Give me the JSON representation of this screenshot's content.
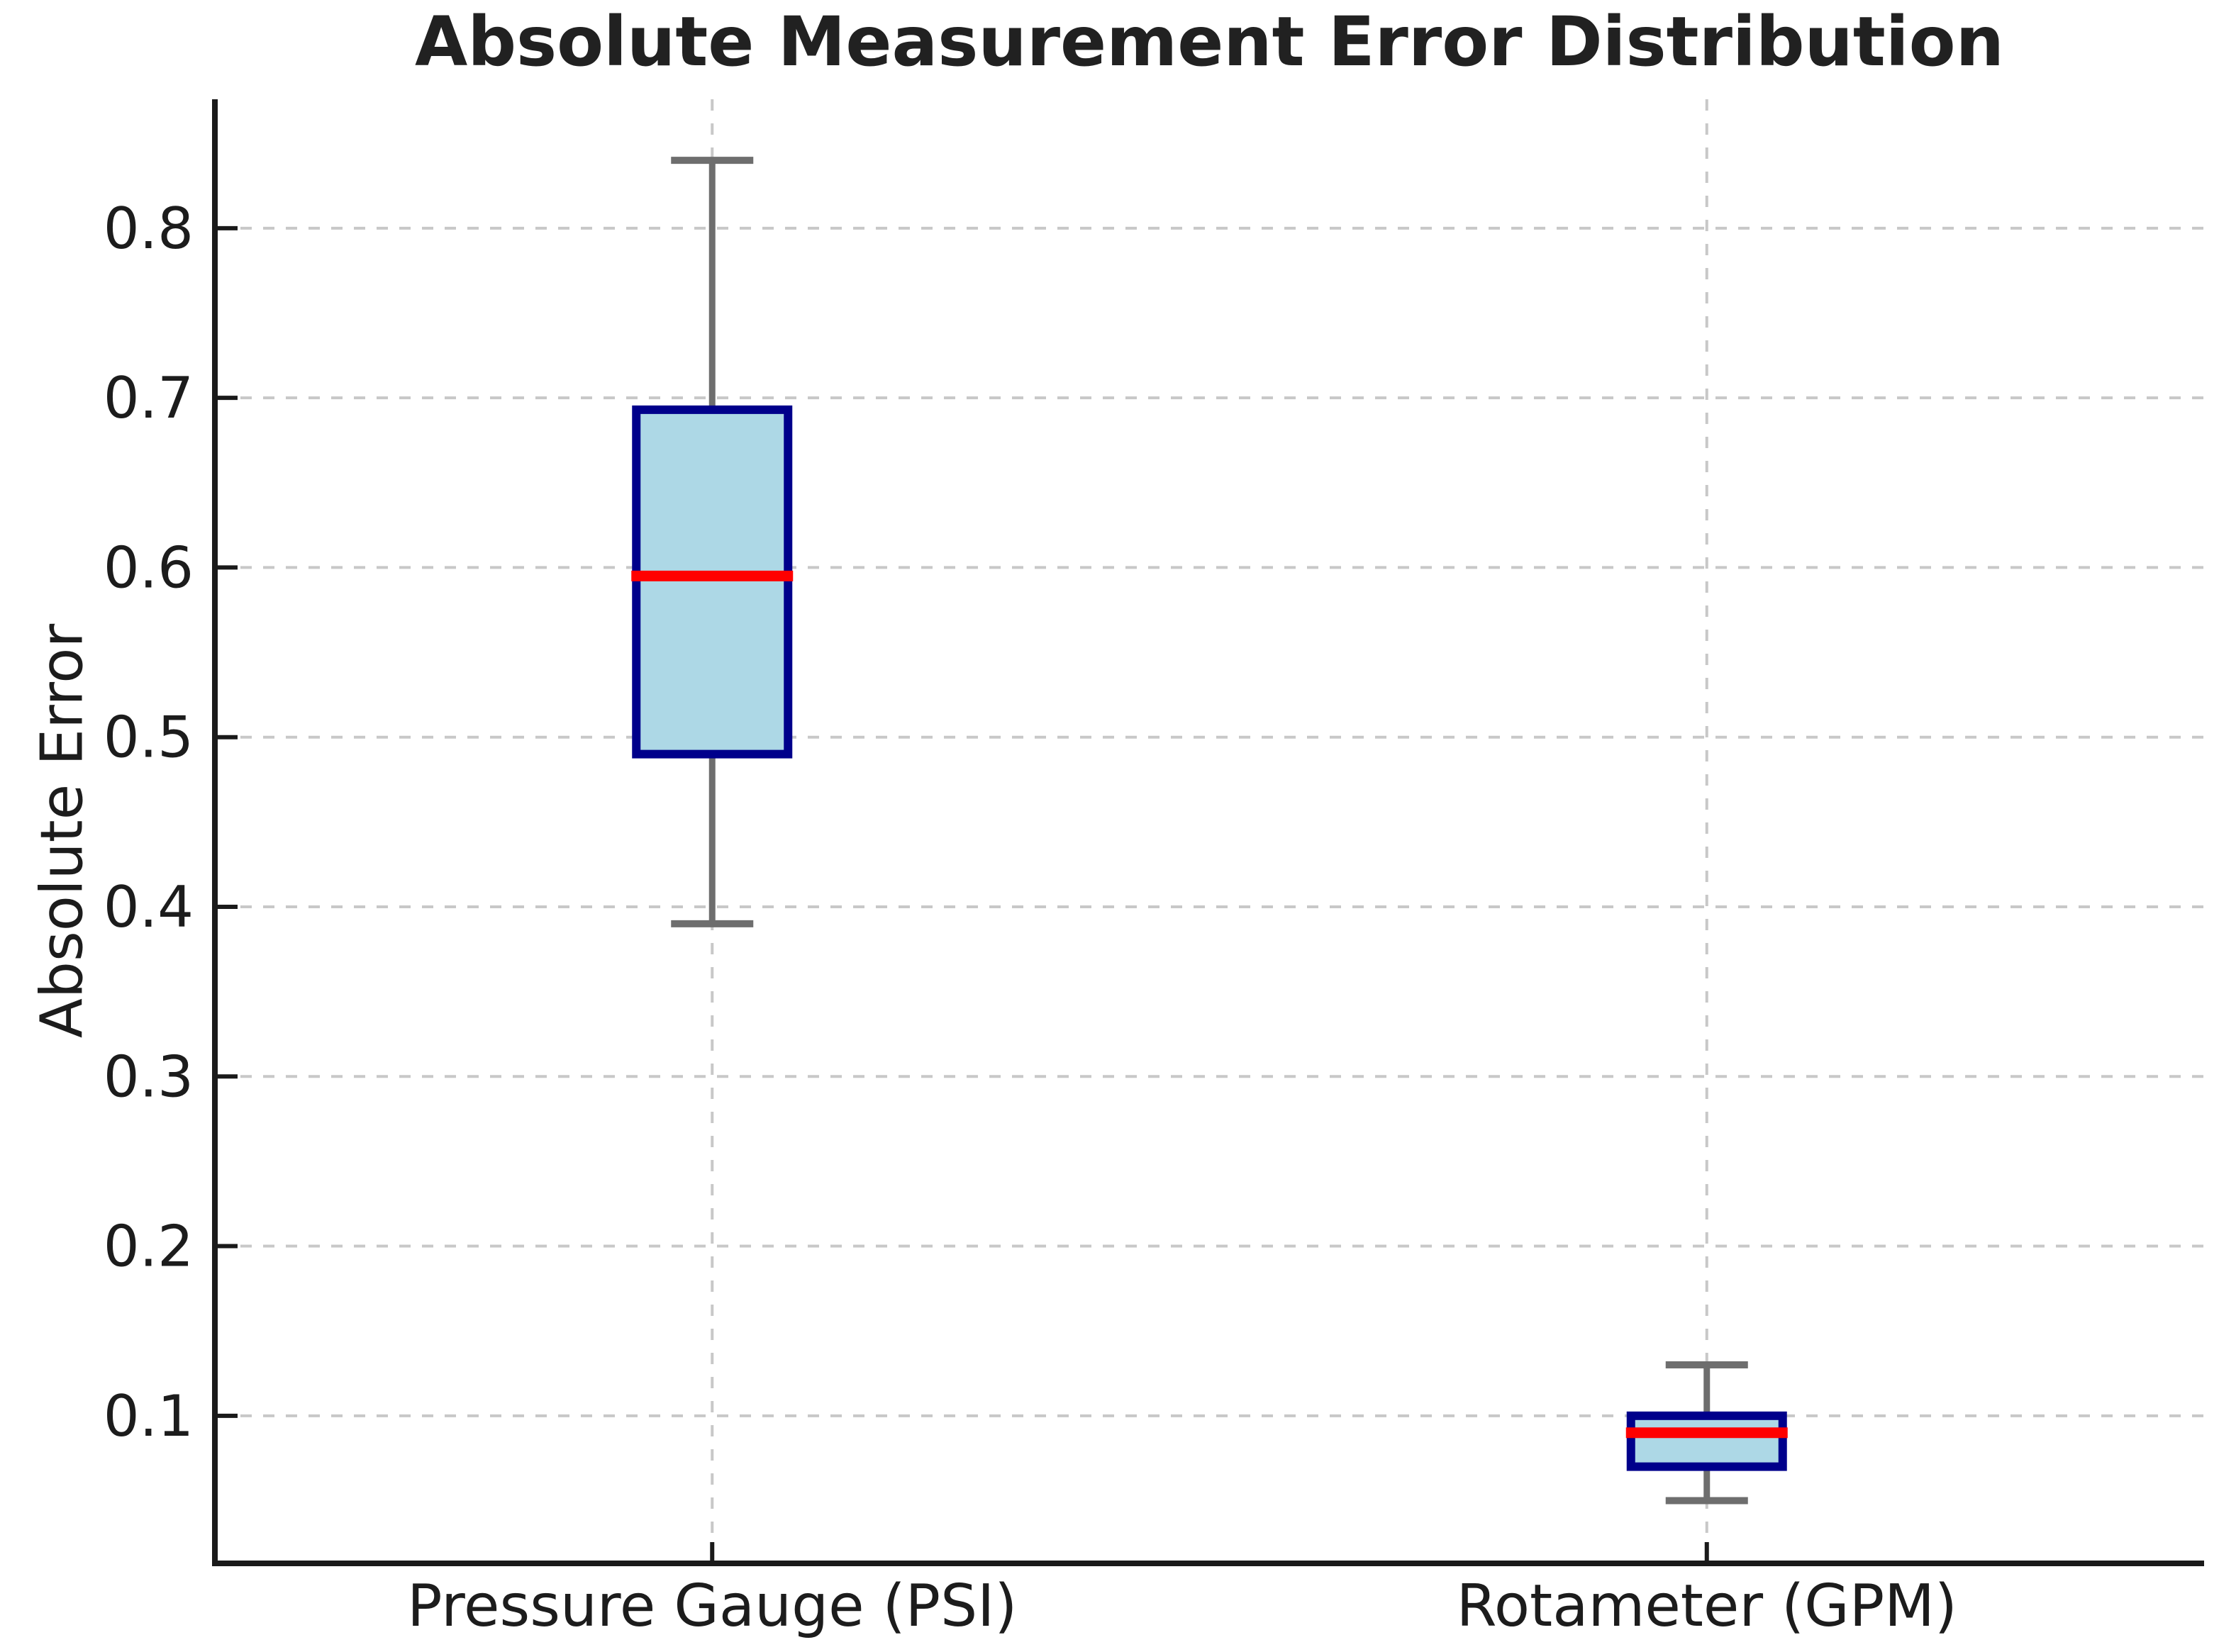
{
  "chart": {
    "title": "Absolute Measurement Error Distribution",
    "ylabel": "Absolute Error"
  },
  "chart_data": {
    "type": "box",
    "title": "Absolute Measurement Error Distribution",
    "xlabel": "",
    "ylabel": "Absolute Error",
    "categories": [
      "Pressure Gauge (PSI)",
      "Rotameter (GPM)"
    ],
    "series": [
      {
        "name": "Pressure Gauge (PSI)",
        "whisker_low": 0.39,
        "q1": 0.49,
        "median": 0.595,
        "q3": 0.693,
        "whisker_high": 0.84
      },
      {
        "name": "Rotameter (GPM)",
        "whisker_low": 0.05,
        "q1": 0.07,
        "median": 0.09,
        "q3": 0.1,
        "whisker_high": 0.13
      }
    ],
    "ytick_values": [
      0.1,
      0.2,
      0.3,
      0.4,
      0.5,
      0.6,
      0.7,
      0.8
    ],
    "ytick_labels": [
      "0.1",
      "0.2",
      "0.3",
      "0.4",
      "0.5",
      "0.6",
      "0.7",
      "0.8"
    ],
    "ylim": [
      0.013,
      0.876
    ],
    "grid": true,
    "grid_style": "dashed",
    "legend": "none",
    "colors": {
      "box_fill": "#ADD8E6",
      "box_edge": "#00008B",
      "median": "#FF0000",
      "whisker": "#6e6e6e",
      "grid": "#c8c8c8",
      "axis": "#1a1a1a",
      "text": "#1c1c1c"
    }
  }
}
